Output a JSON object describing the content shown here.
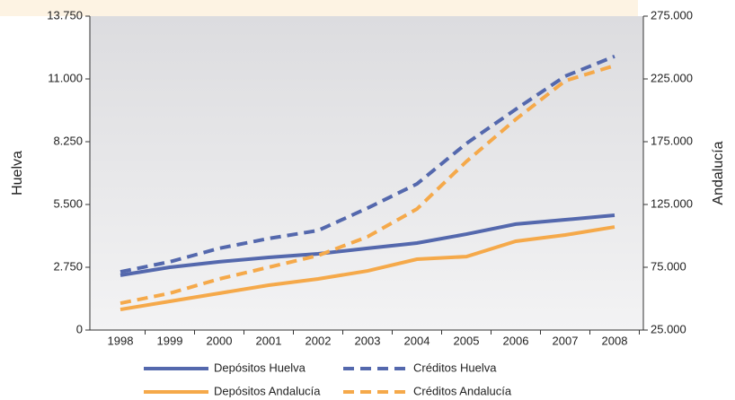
{
  "chart_data": {
    "type": "line",
    "categories": [
      "1998",
      "1999",
      "2000",
      "2001",
      "2002",
      "2003",
      "2004",
      "2005",
      "2006",
      "2007",
      "2008"
    ],
    "ylabel": "Huelva",
    "y2label": "Andalucía",
    "ylim": [
      0,
      13750
    ],
    "yticks": [
      0,
      {
        "value": 2750,
        "label": "2.750"
      },
      {
        "value": 5500,
        "label": "5.500"
      },
      {
        "value": 8250,
        "label": "8.250"
      },
      {
        "value": 11000,
        "label": "11.000"
      },
      {
        "value": 13750,
        "label": "13.750"
      }
    ],
    "y2lim": [
      25000,
      275000
    ],
    "y2ticks": [
      {
        "value": 25000,
        "label": "25.000"
      },
      {
        "value": 75000,
        "label": "75.000"
      },
      {
        "value": 125000,
        "label": "125.000"
      },
      {
        "value": 175000,
        "label": "175.000"
      },
      {
        "value": 225000,
        "label": "225.000"
      },
      {
        "value": 275000,
        "label": "275.000"
      }
    ],
    "series": [
      {
        "name": "Depósitos Huelva",
        "color": "#5468ad",
        "dashed": false,
        "values": [
          2400,
          2750,
          2990,
          3180,
          3340,
          3580,
          3810,
          4200,
          4640,
          4830,
          5030
        ]
      },
      {
        "name": "Créditos Huelva",
        "color": "#5468ad",
        "dashed": true,
        "values": [
          2550,
          2990,
          3580,
          4010,
          4360,
          5340,
          6400,
          8170,
          9670,
          11120,
          11990
        ]
      },
      {
        "name": "Depósitos Andalucía",
        "color": "#f5a94a",
        "dashed": false,
        "axis": "y2",
        "values": [
          41400,
          47850,
          54300,
          60700,
          65700,
          72100,
          81400,
          83500,
          95700,
          100700,
          107100
        ]
      },
      {
        "name": "Créditos Andalucía",
        "color": "#f5a94a",
        "dashed": true,
        "axis": "y2",
        "values": [
          46400,
          54300,
          65700,
          75000,
          84300,
          99300,
          121400,
          159200,
          192800,
          223500,
          235600
        ]
      }
    ]
  }
}
